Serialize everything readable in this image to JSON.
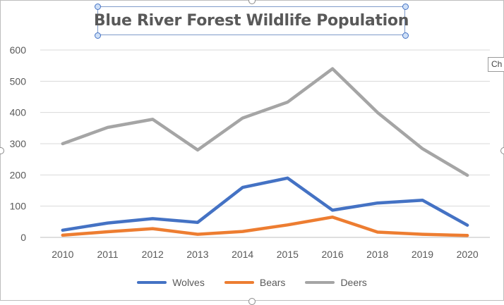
{
  "chart_data": {
    "type": "line",
    "title": "Blue River Forest Wildlife Population",
    "categories": [
      "2010",
      "2011",
      "2012",
      "2013",
      "2014",
      "2015",
      "2016",
      "2018",
      "2019",
      "2020"
    ],
    "ylim": [
      0,
      600
    ],
    "yticks": [
      0,
      100,
      200,
      300,
      400,
      500,
      600
    ],
    "grid": true,
    "legend_position": "bottom",
    "series": [
      {
        "name": "Wolves",
        "color": "#4472c4",
        "values": [
          23,
          46,
          60,
          48,
          160,
          190,
          87,
          110,
          119,
          39
        ]
      },
      {
        "name": "Bears",
        "color": "#ed7d31",
        "values": [
          7,
          18,
          28,
          10,
          19,
          40,
          65,
          17,
          10,
          6
        ]
      },
      {
        "name": "Deers",
        "color": "#a5a5a5",
        "values": [
          300,
          352,
          378,
          280,
          382,
          433,
          540,
          400,
          284,
          199
        ]
      }
    ]
  },
  "ui": {
    "tooltip_text": "Ch"
  }
}
